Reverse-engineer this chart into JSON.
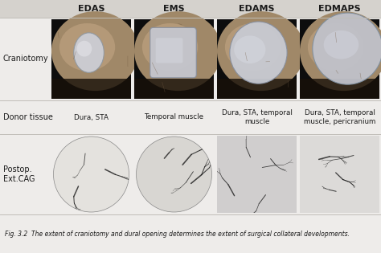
{
  "col_headers": [
    "EDAS",
    "EMS",
    "EDAMS",
    "EDMAPS"
  ],
  "row_label_cranio": "Craniotomy",
  "row_label_donor": "Donor tissue",
  "row_label_postop": "Postop.\nExt.CAG",
  "donor_tissue_texts": [
    "Dura, STA",
    "Temporal muscle",
    "Dura, STA, temporal\nmuscle",
    "Dura, STA, temporal\nmuscle, pericranium"
  ],
  "caption": "Fig. 3.2  The extent of craniotomy and dural opening determines the extent of surgical collateral developments.",
  "bg_color": "#eeecea",
  "header_bg": "#d5d2cd",
  "sep_color": "#c0bdb8",
  "text_color": "#1a1a1a"
}
